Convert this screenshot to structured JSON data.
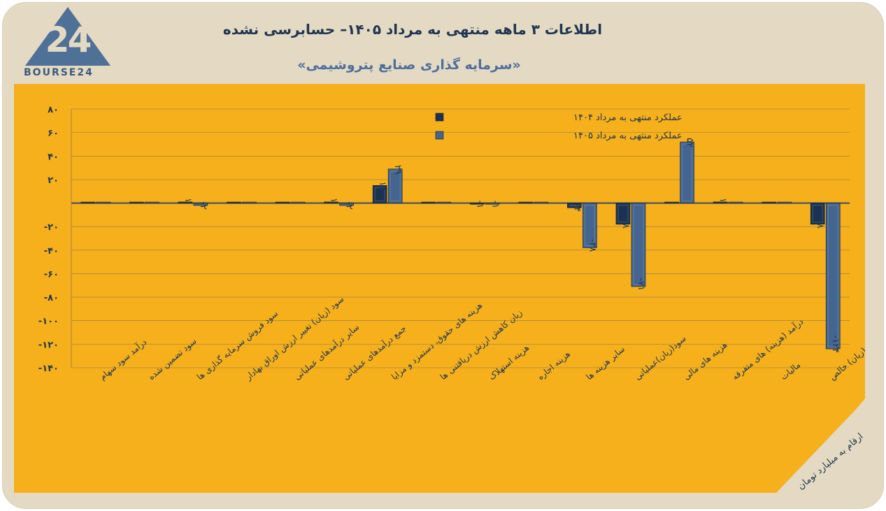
{
  "header": {
    "logo_text": "BOURSE24",
    "title": "اطلاعات ۳ ماهه منتهی به مرداد ۱۴۰۵– حسابرسی نشده",
    "subtitle": "«سرمایه گذاری صنایع پتروشیمی»",
    "units_note": "ارقام به میلیارد تومان"
  },
  "colors": {
    "panel": "#f5b01c",
    "background": "#e4dac3",
    "series_1404": "#1b3352",
    "series_1405": "#43658f"
  },
  "chart_data": {
    "type": "bar",
    "categories": [
      "درآمد سود سهام",
      "سود تضمین شده",
      "سود فروش سرمایه گذاری ها",
      "سود (زیان) تغییر ارزش اوراق بهادار",
      "سایر درآمدهای عملیاتی",
      "جمع درآمدهای عملیاتی",
      "هزینه های حقوق، دستمزد و مزایا",
      "زیان کاهش ارزش دریافتنی ها",
      "هزینه استهلاک",
      "هزینه اجاره",
      "سایر هزینه ها",
      "سود(زیان)عملیاتی",
      "هزینه های مالی",
      "درآمد (هزینه) های متفرقه",
      "مالیات",
      "سود(زیان) خالص"
    ],
    "series": [
      {
        "name": "عملکرد منتهی به مرداد ۱۴۰۴",
        "values": [
          0,
          0,
          1,
          0,
          0,
          1,
          15,
          0,
          -1,
          0,
          -4,
          -18,
          0,
          1,
          0,
          -18
        ]
      },
      {
        "name": "عملکرد منتهی به مرداد ۱۴۰۵",
        "values": [
          0,
          0,
          -2,
          0,
          0,
          -2,
          29,
          0,
          -1,
          0,
          -38,
          -71,
          52,
          0,
          0,
          -124
        ]
      }
    ],
    "data_labels": {
      "s1404": [
        "",
        "",
        "۱",
        "",
        "",
        "۱",
        "۱۵",
        "",
        "-۱",
        "",
        "-۴",
        "-۱۸",
        "",
        "۱",
        "",
        "-۱۸"
      ],
      "s1405": [
        "",
        "",
        "-۲",
        "",
        "",
        "-۲",
        "۲۹",
        "",
        "-۱",
        "",
        "-۳۸",
        "-۷۱",
        "۵۲",
        "",
        "",
        "-۱۲۴"
      ]
    },
    "y_ticks": [
      "۸۰",
      "۶۰",
      "۴۰",
      "۲۰",
      "",
      "-۲۰",
      "-۴۰",
      "-۶۰",
      "-۸۰",
      "-۱۰۰",
      "-۱۲۰",
      "-۱۴۰"
    ],
    "y_tick_values": [
      80,
      60,
      40,
      20,
      0,
      -20,
      -40,
      -60,
      -80,
      -100,
      -120,
      -140
    ],
    "ylim": [
      -140,
      80
    ],
    "grid": true,
    "legend_position": "top-center"
  }
}
